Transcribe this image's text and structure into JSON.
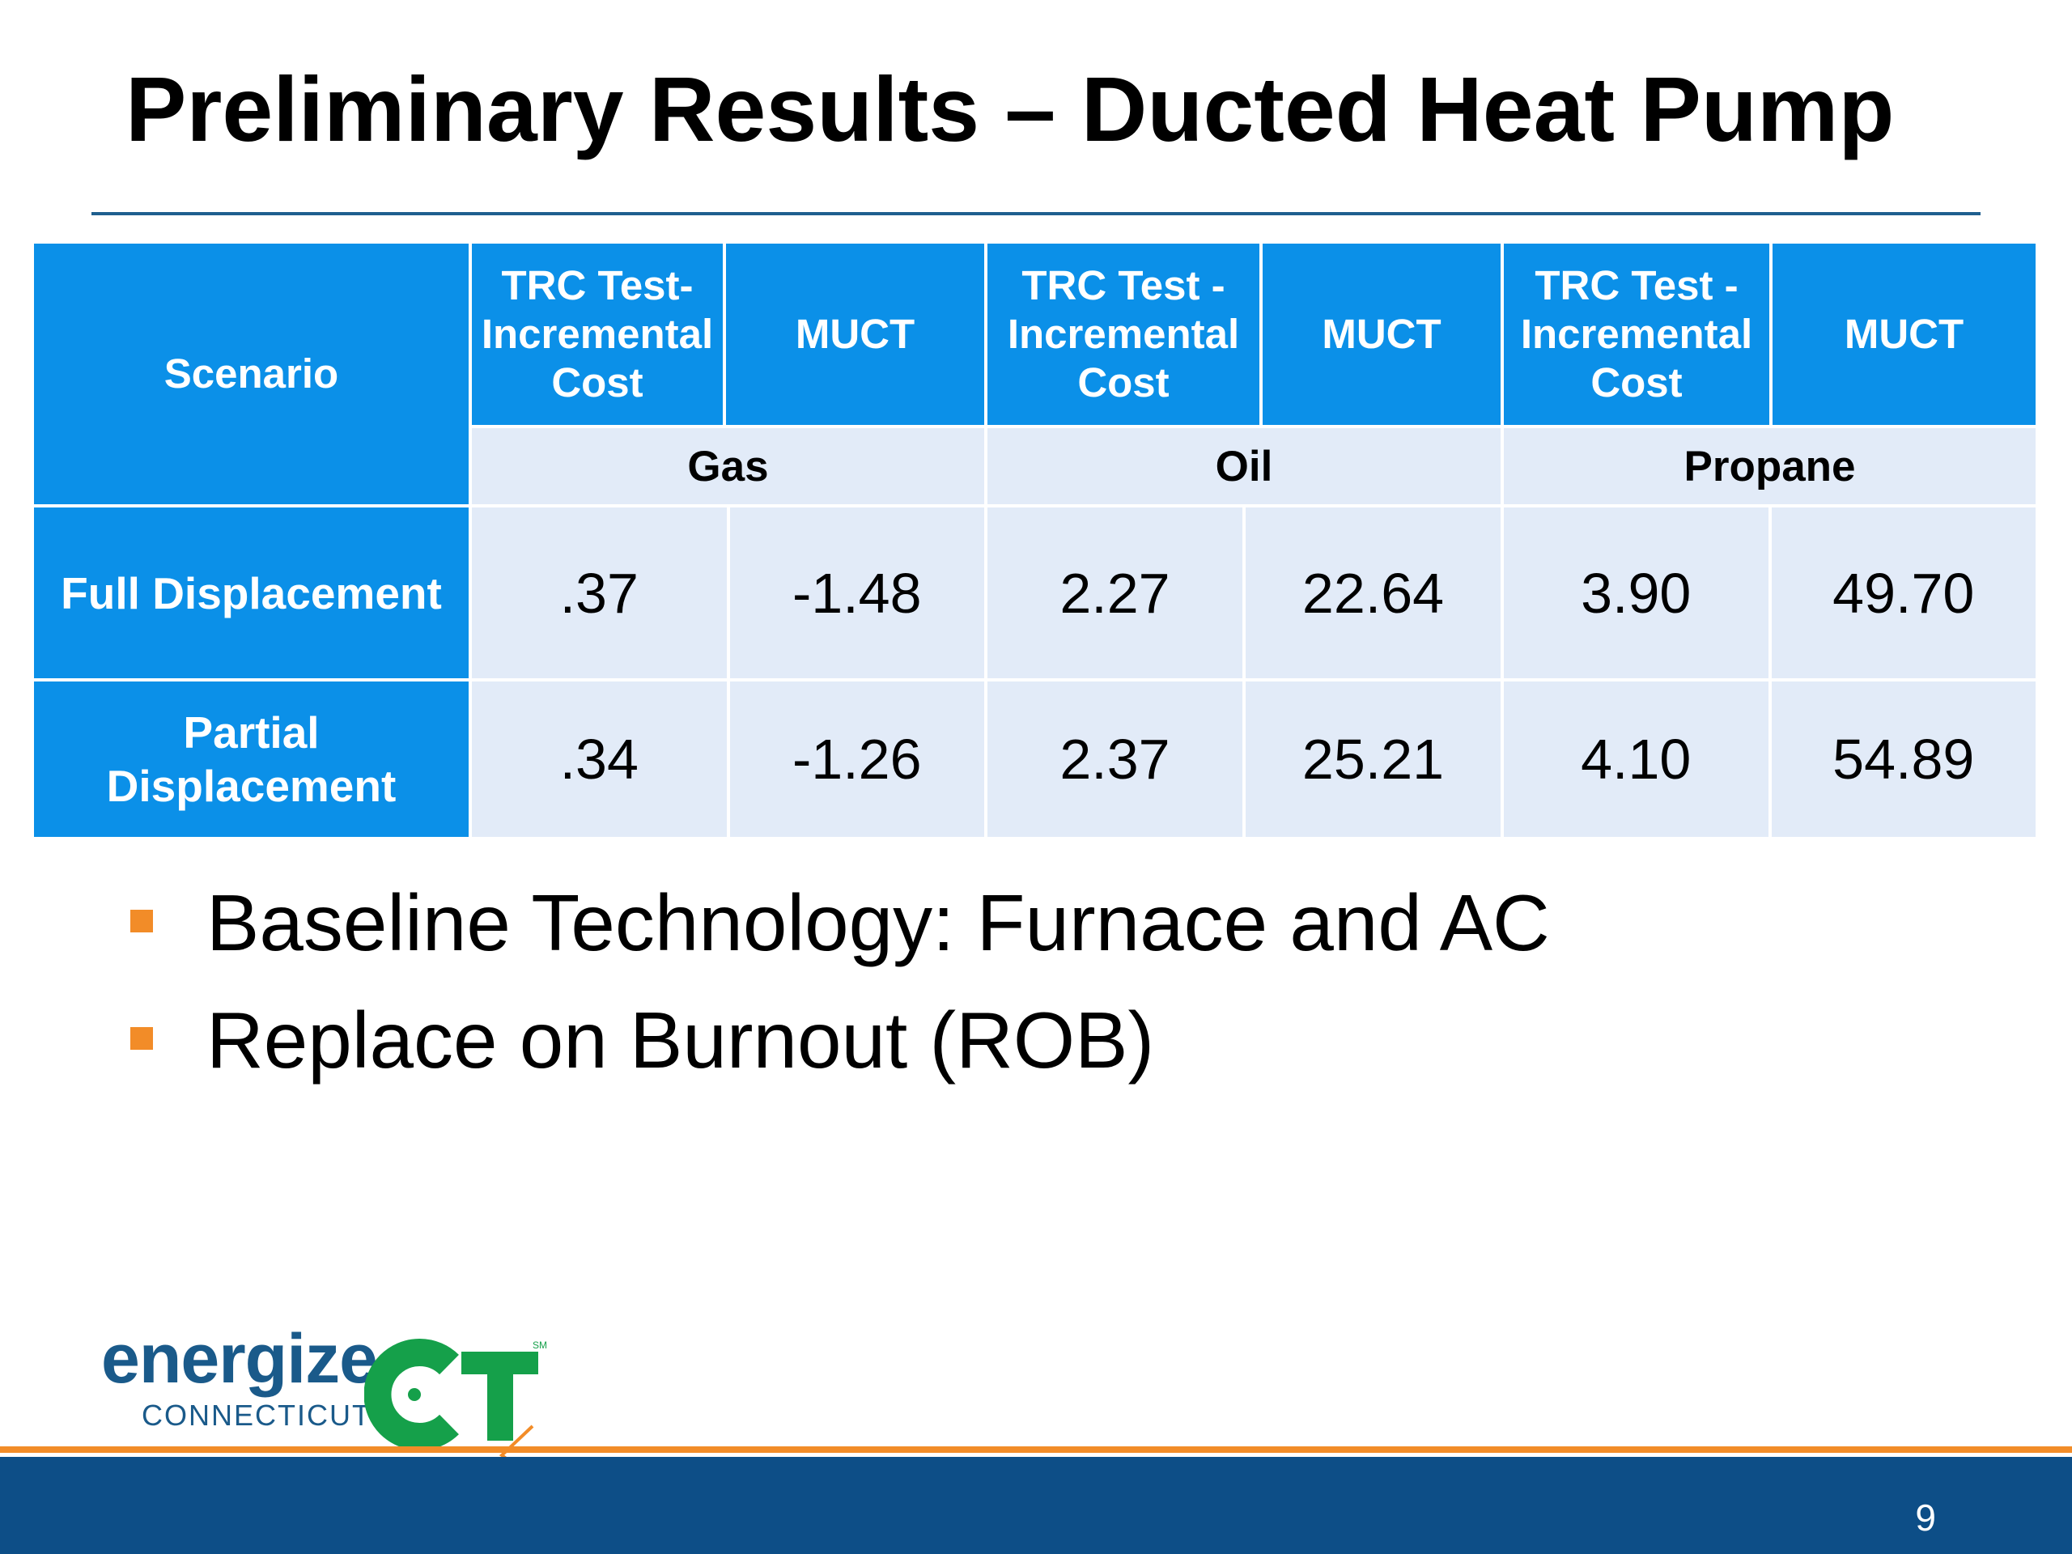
{
  "slide": {
    "title": "Preliminary Results – Ducted Heat Pump",
    "page_number": "9"
  },
  "table": {
    "scenario_header": "Scenario",
    "columns": [
      "TRC Test-\nIncremental\nCost",
      "MUCT",
      "TRC Test -\nIncremental\nCost",
      "MUCT",
      "TRC Test -\nIncremental\nCost",
      "MUCT"
    ],
    "groups": [
      "Gas",
      "Oil",
      "Propane"
    ],
    "rows": [
      {
        "label": "Full Displacement",
        "values": [
          ".37",
          "-1.48",
          "2.27",
          "22.64",
          "3.90",
          "49.70"
        ]
      },
      {
        "label": "Partial\nDisplacement",
        "values": [
          ".34",
          "-1.26",
          "2.37",
          "25.21",
          "4.10",
          "54.89"
        ]
      }
    ]
  },
  "bullets": [
    "Baseline Technology: Furnace and AC",
    "Replace on Burnout (ROB)"
  ],
  "logo": {
    "word": "energize",
    "sub": "CONNECTICUT",
    "mark": "CT",
    "sm": "SM"
  },
  "colors": {
    "header_blue": "#0b90e8",
    "cell_light": "#e2ebf8",
    "accent_orange": "#f28c28",
    "footer_navy": "#0d4e87",
    "logo_green": "#15a04a"
  }
}
